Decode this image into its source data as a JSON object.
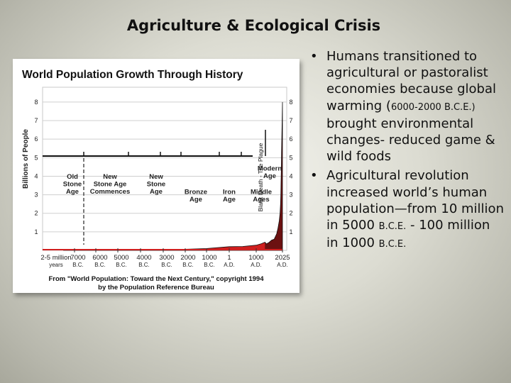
{
  "slide": {
    "title": "Agriculture & Ecological Crisis",
    "bullets": [
      {
        "parts": [
          {
            "text": "Humans transitioned to agricultural or pastoralist economies because global warming (",
            "small": false
          },
          {
            "text": "6000-2000 B.C.E.)",
            "small": true
          },
          {
            "text": " brought environmental changes- reduced game & wild foods",
            "small": false
          }
        ]
      },
      {
        "parts": [
          {
            "text": "Agricultural revolution increased world’s human population—from 10 million in 5000 ",
            "small": false
          },
          {
            "text": "B.C.E.",
            "small": true
          },
          {
            "text": " -  100 million in 1000 ",
            "small": false
          },
          {
            "text": "B.C.E.",
            "small": true
          }
        ]
      }
    ]
  },
  "figure": {
    "source": [
      "From \"World Population: Toward the Next Century,\" copyright 1994",
      "by the Population Reference Bureau"
    ]
  },
  "chart_data": {
    "type": "area",
    "title": "World Population Growth Through History",
    "ylabel": "Billions of People",
    "ylim": [
      0,
      8.8
    ],
    "y_ticks": [
      "1",
      "2",
      "3",
      "4",
      "5",
      "6",
      "7",
      "8"
    ],
    "x_ticks": [
      {
        "l1": "2-5 million",
        "l2": "years"
      },
      {
        "l1": "7000",
        "l2": "B.C."
      },
      {
        "l1": "6000",
        "l2": "B.C."
      },
      {
        "l1": "5000",
        "l2": "B.C."
      },
      {
        "l1": "4000",
        "l2": "B.C."
      },
      {
        "l1": "3000",
        "l2": "B.C."
      },
      {
        "l1": "2000",
        "l2": "B.C."
      },
      {
        "l1": "1000",
        "l2": "B.C."
      },
      {
        "l1": "1",
        "l2": "A.D."
      },
      {
        "l1": "1000",
        "l2": "A.D."
      },
      {
        "l1": "2025",
        "l2": "A.D."
      }
    ],
    "eras": [
      {
        "lines": [
          "Old",
          "Stone",
          "Age"
        ]
      },
      {
        "lines": [
          "New",
          "Stone Age",
          "Commences"
        ]
      },
      {
        "lines": [
          "New",
          "Stone",
          "Age"
        ]
      },
      {
        "lines": [
          "Bronze",
          "Age"
        ]
      },
      {
        "lines": [
          "Iron",
          "Age"
        ]
      },
      {
        "lines": [
          "Middle",
          "Ages"
        ]
      },
      {
        "lines": [
          "Modern",
          "Age"
        ]
      }
    ],
    "annotation": "Black Death - The Plague",
    "series": [
      {
        "year": [
          -8000,
          -7000,
          -6000,
          -5000,
          -4000,
          -3000,
          -2000,
          -1000,
          1,
          500,
          1000,
          1200,
          1340,
          1400,
          1500,
          1600,
          1700,
          1800,
          1850,
          1900,
          1930,
          1950,
          1960,
          1970,
          1980,
          1990,
          2000,
          2010,
          2025
        ],
        "billions": [
          0.005,
          0.008,
          0.01,
          0.02,
          0.03,
          0.04,
          0.06,
          0.1,
          0.2,
          0.21,
          0.28,
          0.36,
          0.44,
          0.35,
          0.43,
          0.55,
          0.6,
          0.9,
          1.2,
          1.6,
          2.0,
          2.5,
          3.0,
          3.7,
          4.4,
          5.3,
          6.1,
          6.9,
          8.0
        ]
      }
    ]
  }
}
